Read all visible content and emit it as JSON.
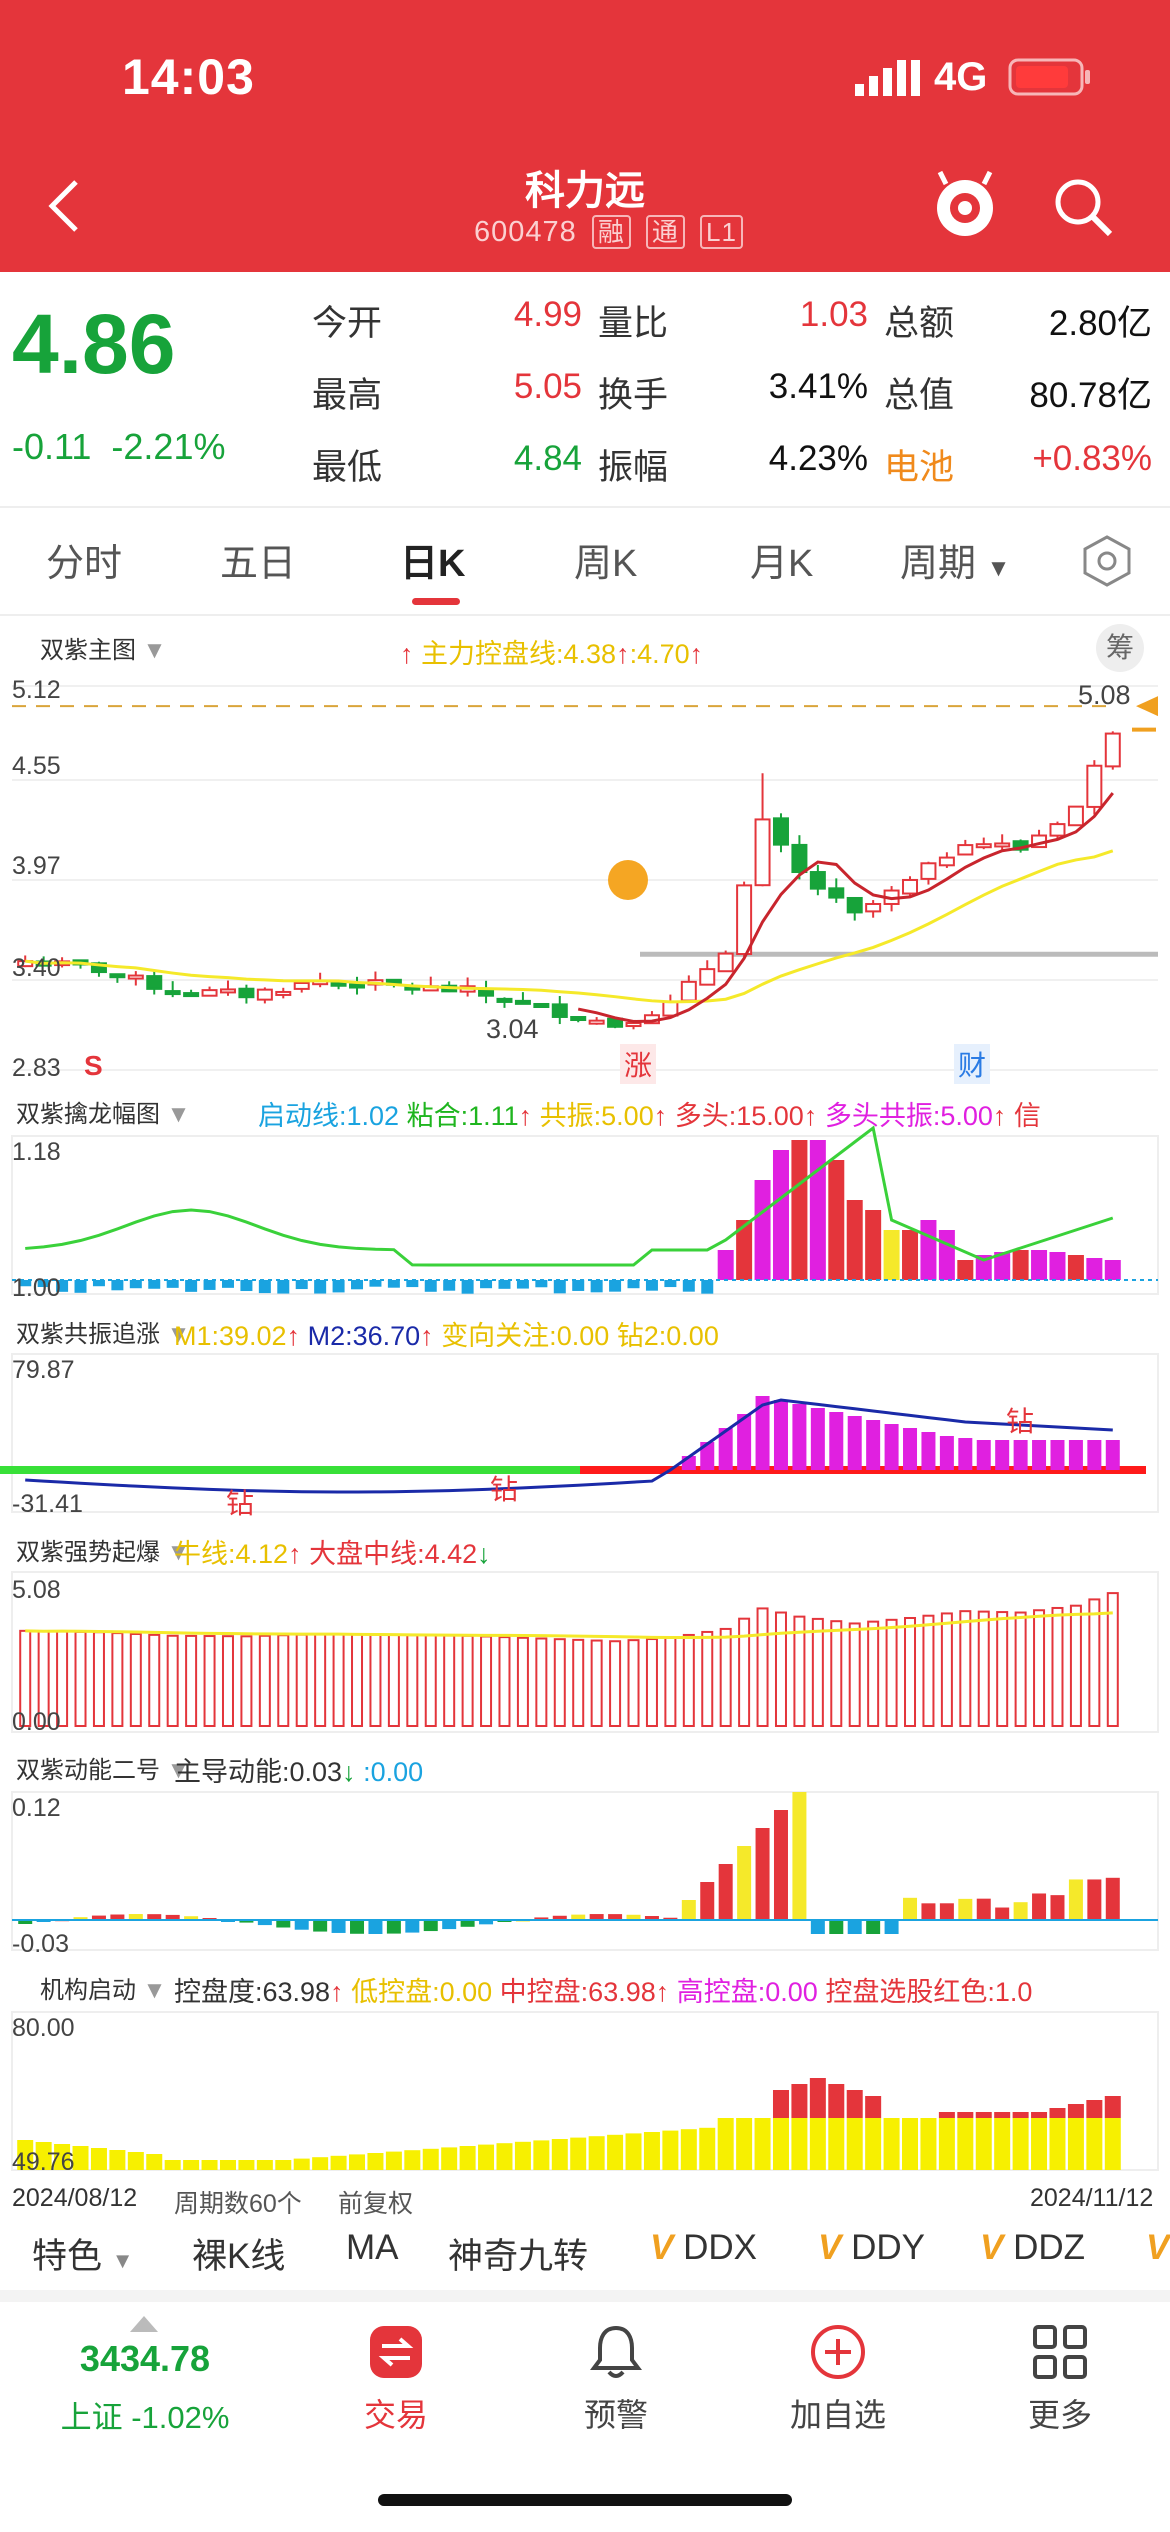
{
  "status_bar": {
    "time": "14:03",
    "network": "4G"
  },
  "stock": {
    "name": "科力远",
    "code": "600478",
    "tags": [
      "融",
      "通",
      "L1"
    ]
  },
  "quote": {
    "price": "4.86",
    "change": "-0.11",
    "change_pct": "-2.21%",
    "rows": [
      {
        "l1": "今开",
        "v1": "4.99",
        "l2": "量比",
        "v2": "1.03",
        "l3": "总额",
        "v3": "2.80亿"
      },
      {
        "l1": "最高",
        "v1": "5.05",
        "l2": "换手",
        "v2": "3.41%",
        "l3": "总值",
        "v3": "80.78亿"
      },
      {
        "l1": "最低",
        "v1": "4.84",
        "l2": "振幅",
        "v2": "4.23%",
        "l3": "电池",
        "v3": "+0.83%"
      }
    ]
  },
  "tabs": [
    "分时",
    "五日",
    "日K",
    "周K",
    "月K",
    "周期"
  ],
  "main_chart": {
    "title": "双紫主图",
    "chip_label": "筹",
    "indicator": "主力控盘线:4.38",
    "indicator2": ":4.70",
    "y_labels": [
      "5.12",
      "4.55",
      "3.97",
      "3.40",
      "2.83"
    ],
    "high_label": "5.08",
    "low_label": "3.04",
    "markers": {
      "s": "S",
      "zhang": "涨",
      "cai": "财"
    }
  },
  "panels": {
    "p1": {
      "title": "双紫擒龙幅图",
      "items": [
        "启动线:1.02",
        "粘合:1.11",
        "共振:5.00",
        "多头:15.00",
        "多头共振:5.00",
        "信"
      ],
      "top": "1.18",
      "bottom": "1.00"
    },
    "p2": {
      "title": "双紫共振追涨",
      "items": [
        "M1:39.02",
        "M2:36.70",
        "变向关注:0.00",
        "钻2:0.00"
      ],
      "top": "79.87",
      "bottom": "-31.41",
      "mark": "钻"
    },
    "p3": {
      "title": "双紫强势起爆",
      "items": [
        "牛线:4.12",
        "大盘中线:4.42"
      ],
      "top": "5.08",
      "bottom": "0.00"
    },
    "p4": {
      "title": "双紫动能二号",
      "items": [
        "主导动能:0.03",
        ":0.00"
      ],
      "top": "0.12",
      "bottom": "-0.03"
    },
    "p5": {
      "title": "机构启动",
      "items": [
        "控盘度:63.98",
        "低控盘:0.00",
        "中控盘:63.98",
        "高控盘:0.00",
        "控盘选股红色:1.0"
      ],
      "top": "80.00",
      "bottom": "49.76"
    }
  },
  "footer_info": {
    "start": "2024/08/12",
    "period": "周期数60个",
    "adjust": "前复权",
    "end": "2024/11/12"
  },
  "features": [
    "特色",
    "裸K线",
    "MA",
    "神奇九转",
    "DDX",
    "DDY",
    "DDZ"
  ],
  "bottom_nav": {
    "index_value": "3434.78",
    "index_name": "上证 -1.02%",
    "items": [
      "交易",
      "预警",
      "加自选",
      "更多"
    ]
  },
  "chart_data": {
    "type": "candlestick",
    "x": [
      "2024/08/12",
      "2024/11/12"
    ],
    "ylim": [
      2.83,
      5.12
    ],
    "periods": 60,
    "high": 5.08,
    "low": 3.04,
    "last": 4.86
  }
}
